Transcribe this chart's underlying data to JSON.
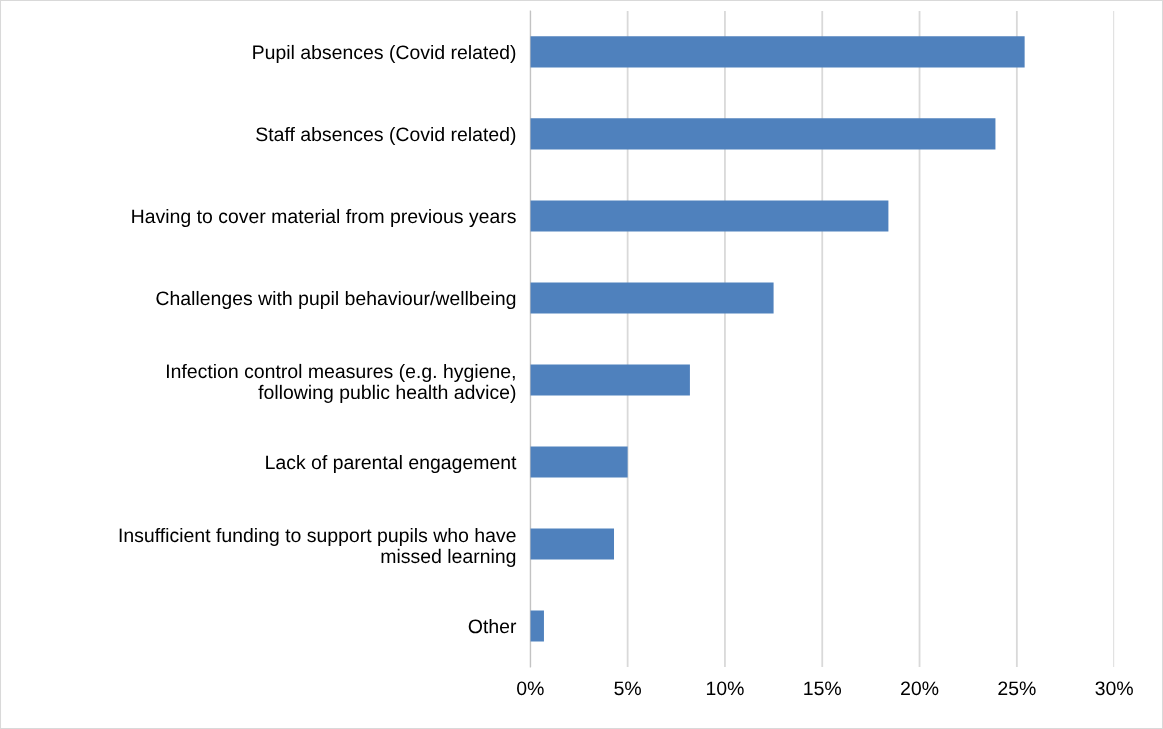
{
  "chart_data": {
    "type": "bar",
    "orientation": "horizontal",
    "categories": [
      "Pupil absences (Covid related)",
      "Staff absences (Covid related)",
      "Having to cover material from previous years",
      "Challenges with pupil behaviour/wellbeing",
      "Infection control measures (e.g. hygiene,\nfollowing public health advice)",
      "Lack of parental engagement",
      "Insufficient funding to support pupils who have\nmissed learning",
      "Other"
    ],
    "values": [
      25.4,
      23.9,
      18.4,
      12.5,
      8.2,
      5.0,
      4.3,
      0.7
    ],
    "color": "#4f81bd",
    "xlim": [
      0,
      30
    ],
    "xticks": [
      {
        "value": 0,
        "label": "0%"
      },
      {
        "value": 5,
        "label": "5%"
      },
      {
        "value": 10,
        "label": "10%"
      },
      {
        "value": 15,
        "label": "15%"
      },
      {
        "value": 20,
        "label": "20%"
      },
      {
        "value": 25,
        "label": "25%"
      },
      {
        "value": 30,
        "label": "30%"
      }
    ],
    "grid": "x"
  }
}
